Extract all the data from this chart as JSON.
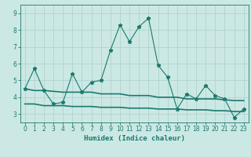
{
  "x": [
    0,
    1,
    2,
    3,
    4,
    5,
    6,
    7,
    8,
    9,
    10,
    11,
    12,
    13,
    14,
    15,
    16,
    17,
    18,
    19,
    20,
    21,
    22,
    23
  ],
  "y_main": [
    4.5,
    5.7,
    4.4,
    3.6,
    3.7,
    5.4,
    4.3,
    4.9,
    5.0,
    6.8,
    8.3,
    7.3,
    8.2,
    8.7,
    5.9,
    5.2,
    3.3,
    4.2,
    3.9,
    4.7,
    4.1,
    3.9,
    2.8,
    3.3
  ],
  "y_upper": [
    4.5,
    4.4,
    4.4,
    4.35,
    4.3,
    4.3,
    4.3,
    4.3,
    4.2,
    4.2,
    4.2,
    4.1,
    4.1,
    4.1,
    4.0,
    4.0,
    4.0,
    3.9,
    3.9,
    3.9,
    3.9,
    3.85,
    3.8,
    3.8
  ],
  "y_lower": [
    3.6,
    3.6,
    3.5,
    3.5,
    3.5,
    3.45,
    3.45,
    3.45,
    3.4,
    3.4,
    3.4,
    3.35,
    3.35,
    3.35,
    3.3,
    3.3,
    3.3,
    3.25,
    3.25,
    3.25,
    3.2,
    3.2,
    3.15,
    3.15
  ],
  "line_color": "#1a7a6e",
  "bg_color": "#cce8e4",
  "grid_color": "#aacfcb",
  "xlabel": "Humidex (Indice chaleur)",
  "ylim": [
    2.5,
    9.5
  ],
  "xlim": [
    -0.5,
    23.5
  ],
  "yticks": [
    3,
    4,
    5,
    6,
    7,
    8,
    9
  ],
  "xticks": [
    0,
    1,
    2,
    3,
    4,
    5,
    6,
    7,
    8,
    9,
    10,
    11,
    12,
    13,
    14,
    15,
    16,
    17,
    18,
    19,
    20,
    21,
    22,
    23
  ],
  "tick_fontsize": 5.5,
  "xlabel_fontsize": 6.5,
  "main_linewidth": 0.8,
  "band_linewidth": 1.2,
  "marker_size": 3.5
}
